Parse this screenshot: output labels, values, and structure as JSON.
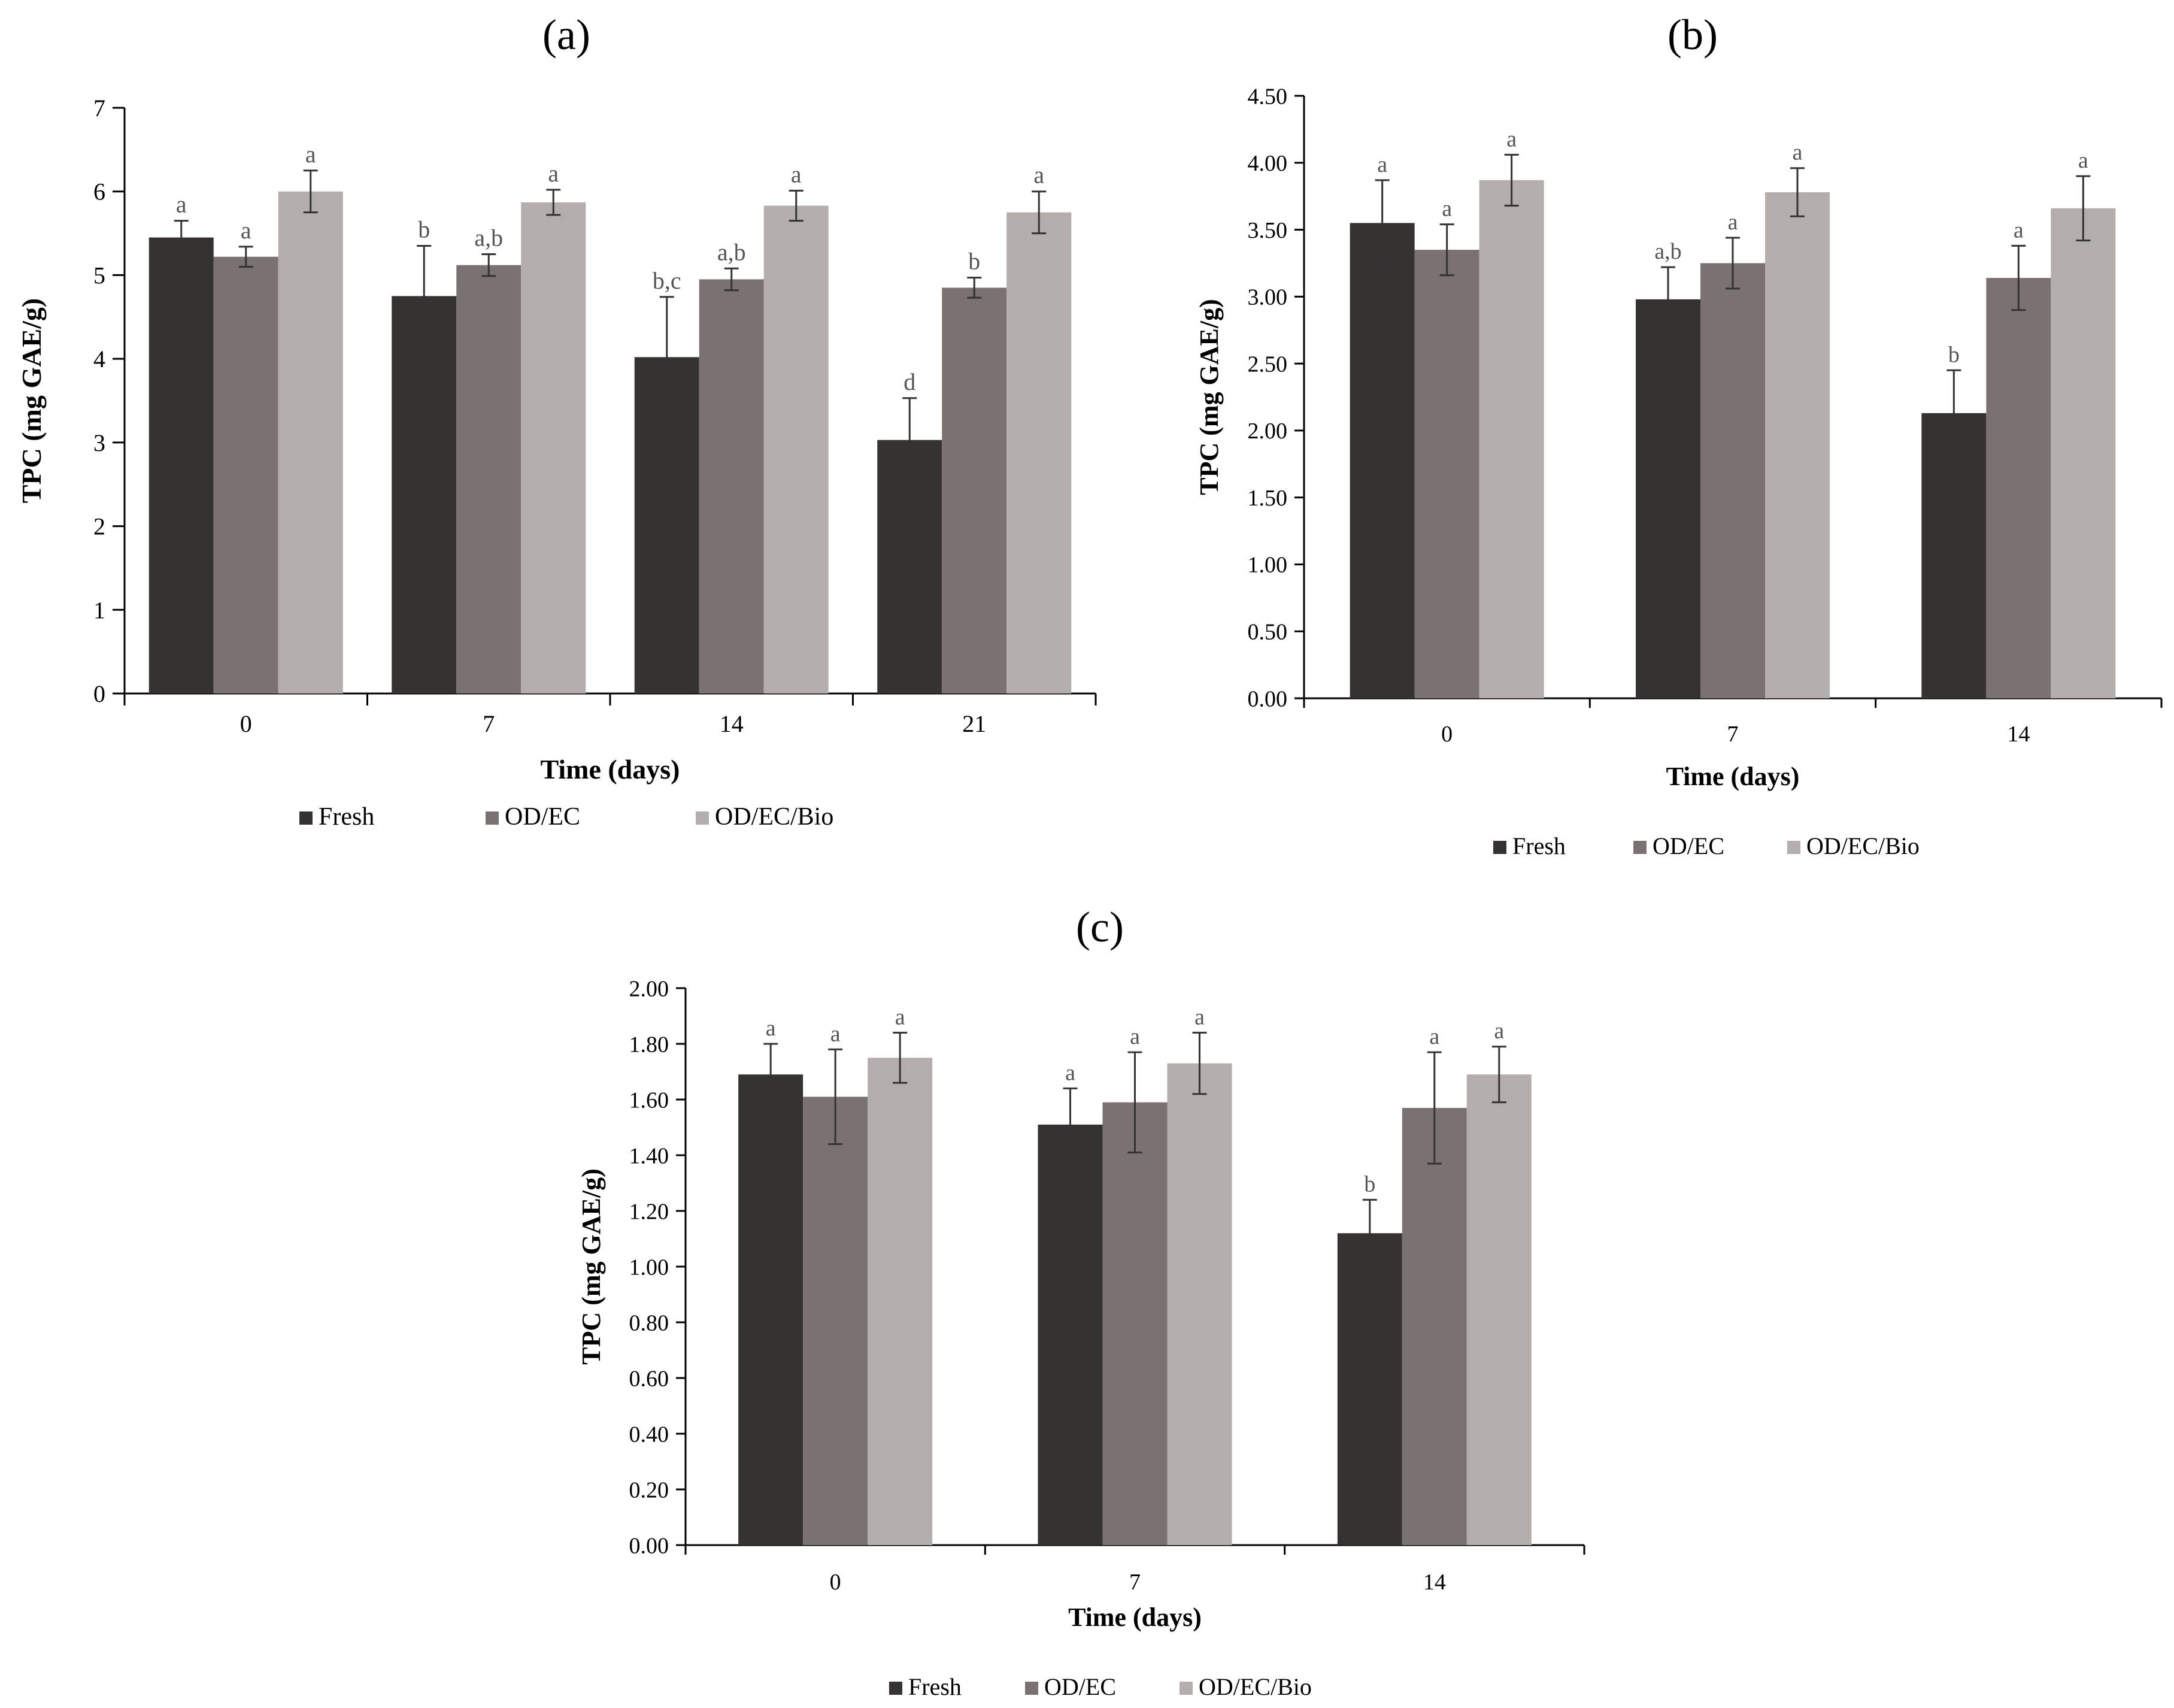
{
  "colors": {
    "Fresh": "#373232",
    "OD/EC": "#7a7271",
    "OD/EC/Bio": "#b3aeac",
    "axis": "#000000",
    "error_bar": "#333333",
    "letter": "#555555"
  },
  "chart_data": [
    {
      "panel": "(a)",
      "panel_id": "a",
      "type": "bar",
      "xlabel": "Time (days)",
      "ylabel": "TPC (mg GAE/g)",
      "ylim": [
        0,
        7
      ],
      "yticks": [
        "0",
        "1",
        "2",
        "3",
        "4",
        "5",
        "6",
        "7"
      ],
      "categories": [
        "0",
        "7",
        "14",
        "21"
      ],
      "legend_position": "bottom",
      "series": [
        {
          "name": "Fresh",
          "values": [
            5.45,
            4.75,
            4.02,
            3.03
          ],
          "errors": [
            0.2,
            0.6,
            0.72,
            0.5
          ],
          "letters": [
            "a",
            "b",
            "b,c",
            "d"
          ]
        },
        {
          "name": "OD/EC",
          "values": [
            5.22,
            5.12,
            4.95,
            4.85
          ],
          "errors": [
            0.12,
            0.13,
            0.13,
            0.12
          ],
          "letters": [
            "a",
            "a,b",
            "a,b",
            "b"
          ]
        },
        {
          "name": "OD/EC/Bio",
          "values": [
            6.0,
            5.87,
            5.83,
            5.75
          ],
          "errors": [
            0.25,
            0.15,
            0.18,
            0.25
          ],
          "letters": [
            "a",
            "a",
            "a",
            "a"
          ]
        }
      ]
    },
    {
      "panel": "(b)",
      "panel_id": "b",
      "type": "bar",
      "xlabel": "Time (days)",
      "ylabel": "TPC (mg GAE/g)",
      "ylim": [
        0,
        4.5
      ],
      "yticks": [
        "0.00",
        "0.50",
        "1.00",
        "1.50",
        "2.00",
        "2.50",
        "3.00",
        "3.50",
        "4.00",
        "4.50"
      ],
      "categories": [
        "0",
        "7",
        "14"
      ],
      "legend_position": "bottom",
      "series": [
        {
          "name": "Fresh",
          "values": [
            3.55,
            2.98,
            2.13
          ],
          "errors": [
            0.32,
            0.24,
            0.32
          ],
          "letters": [
            "a",
            "a,b",
            "b"
          ]
        },
        {
          "name": "OD/EC",
          "values": [
            3.35,
            3.25,
            3.14
          ],
          "errors": [
            0.19,
            0.19,
            0.24
          ],
          "letters": [
            "a",
            "a",
            "a"
          ]
        },
        {
          "name": "OD/EC/Bio",
          "values": [
            3.87,
            3.78,
            3.66
          ],
          "errors": [
            0.19,
            0.18,
            0.24
          ],
          "letters": [
            "a",
            "a",
            "a"
          ]
        }
      ]
    },
    {
      "panel": "(c)",
      "panel_id": "c",
      "type": "bar",
      "xlabel": "Time (days)",
      "ylabel": "TPC (mg GAE/g)",
      "ylim": [
        0,
        2
      ],
      "yticks": [
        "0.00",
        "0.20",
        "0.40",
        "0.60",
        "0.80",
        "1.00",
        "1.20",
        "1.40",
        "1.60",
        "1.80",
        "2.00"
      ],
      "categories": [
        "0",
        "7",
        "14"
      ],
      "legend_position": "bottom",
      "series": [
        {
          "name": "Fresh",
          "values": [
            1.69,
            1.51,
            1.12
          ],
          "errors": [
            0.11,
            0.13,
            0.12
          ],
          "letters": [
            "a",
            "a",
            "b"
          ]
        },
        {
          "name": "OD/EC",
          "values": [
            1.61,
            1.59,
            1.57
          ],
          "errors": [
            0.17,
            0.18,
            0.2
          ],
          "letters": [
            "a",
            "a",
            "a"
          ]
        },
        {
          "name": "OD/EC/Bio",
          "values": [
            1.75,
            1.73,
            1.69
          ],
          "errors": [
            0.09,
            0.11,
            0.1
          ],
          "letters": [
            "a",
            "a",
            "a"
          ]
        }
      ]
    }
  ]
}
